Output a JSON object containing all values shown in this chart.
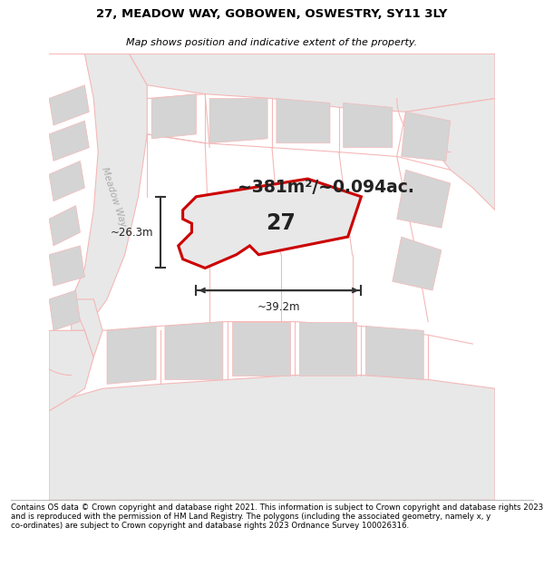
{
  "title_line1": "27, MEADOW WAY, GOBOWEN, OSWESTRY, SY11 3LY",
  "title_line2": "Map shows position and indicative extent of the property.",
  "area_text": "~381m²/~0.094ac.",
  "label_27": "27",
  "dim_width": "~39.2m",
  "dim_height": "~26.3m",
  "street_label": "Meadow Way",
  "footer_text": "Contains OS data © Crown copyright and database right 2021. This information is subject to Crown copyright and database rights 2023 and is reproduced with the permission of HM Land Registry. The polygons (including the associated geometry, namely x, y co-ordinates) are subject to Crown copyright and database rights 2023 Ordnance Survey 100026316.",
  "bg_color": "#ffffff",
  "map_bg": "#ffffff",
  "road_fill_color": "#e8e8e8",
  "road_outline_color": "#f5b8b8",
  "plot_outline_color": "#cc0000",
  "plot_fill_color": "#e8e8e8",
  "dim_color": "#333333",
  "building_color": "#d4d4d4",
  "street_label_color": "#aaaaaa",
  "title_color": "#000000",
  "footer_color": "#000000"
}
